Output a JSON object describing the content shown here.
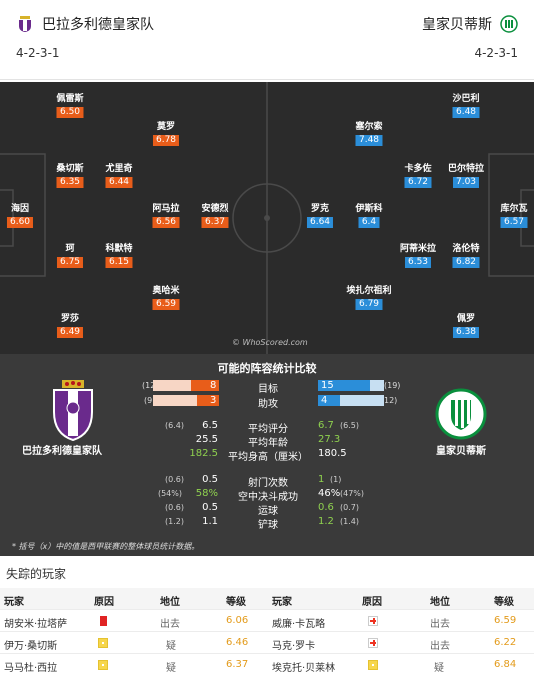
{
  "header": {
    "home_team": "巴拉多利德皇家队",
    "away_team": "皇家贝蒂斯",
    "home_formation": "4-2-3-1",
    "away_formation": "4-2-3-1"
  },
  "pitch": {
    "watermark": "© WhoScored.com",
    "home_players": [
      {
        "name": "佩雷斯",
        "rating": "6.50"
      },
      {
        "name": "莫罗",
        "rating": "6.78"
      },
      {
        "name": "桑切斯",
        "rating": "6.35"
      },
      {
        "name": "尤里奇",
        "rating": "6.44"
      },
      {
        "name": "海因",
        "rating": "6.60"
      },
      {
        "name": "阿马拉",
        "rating": "6.56"
      },
      {
        "name": "安德烈",
        "rating": "6.37"
      },
      {
        "name": "珂",
        "rating": "6.75"
      },
      {
        "name": "科默特",
        "rating": "6.15"
      },
      {
        "name": "奥哈米",
        "rating": "6.59"
      },
      {
        "name": "罗莎",
        "rating": "6.49"
      }
    ],
    "away_players": [
      {
        "name": "沙巴利",
        "rating": "6.48"
      },
      {
        "name": "塞尔索",
        "rating": "7.48"
      },
      {
        "name": "卡多佐",
        "rating": "6.72"
      },
      {
        "name": "巴尔特拉",
        "rating": "7.03"
      },
      {
        "name": "罗克",
        "rating": "6.64"
      },
      {
        "name": "伊斯科",
        "rating": "6.4"
      },
      {
        "name": "库尔瓦",
        "rating": "6.57"
      },
      {
        "name": "阿蒂米拉",
        "rating": "6.53"
      },
      {
        "name": "洛伦特",
        "rating": "6.82"
      },
      {
        "name": "埃扎尔祖利",
        "rating": "6.79"
      },
      {
        "name": "佩罗",
        "rating": "6.38"
      }
    ]
  },
  "stats": {
    "title": "可能的阵容统计比较",
    "home_name": "巴拉多利德皇家队",
    "away_name": "皇家贝蒂斯",
    "bars": [
      {
        "label": "目标",
        "home": "8",
        "home_sub": "(12",
        "home_frac": 0.42,
        "away": "15",
        "away_sub": "(19)",
        "away_frac": 0.79
      },
      {
        "label": "助攻",
        "home": "3",
        "home_sub": "(9",
        "home_frac": 0.33,
        "away": "4",
        "away_sub": "12)",
        "away_frac": 0.33
      }
    ],
    "rows": [
      {
        "label": "平均评分",
        "home": "6.5",
        "home_sub": "(6.4)",
        "away": "6.7",
        "away_sub": "(6.5)",
        "home_green": false,
        "away_green": true
      },
      {
        "label": "平均年龄",
        "home": "25.5",
        "home_sub": "",
        "away": "27.3",
        "away_sub": "",
        "home_green": false,
        "away_green": true
      },
      {
        "label": "平均身高（厘米）",
        "home": "182.5",
        "home_sub": "",
        "away": "180.5",
        "away_sub": "",
        "home_green": true,
        "away_green": false
      },
      {
        "label": "射门次数",
        "home": "0.5",
        "home_sub": "(0.6)",
        "away": "1",
        "away_sub": "(1)",
        "home_green": false,
        "away_green": true
      },
      {
        "label": "空中决斗成功",
        "home": "58%",
        "home_sub": "(54%)",
        "away": "46%",
        "away_sub": "(47%)",
        "home_green": true,
        "away_green": false
      },
      {
        "label": "运球",
        "home": "0.5",
        "home_sub": "(0.6)",
        "away": "0.6",
        "away_sub": "(0.7)",
        "home_green": false,
        "away_green": true
      },
      {
        "label": "铲球",
        "home": "1.1",
        "home_sub": "(1.2)",
        "away": "1.2",
        "away_sub": "(1.4)",
        "home_green": false,
        "away_green": true
      }
    ],
    "footnote": "* 括号（x）中的值是西甲联赛的整体球员统计数据。"
  },
  "missing": {
    "title": "失踪的玩家",
    "headers": [
      "玩家",
      "原因",
      "地位",
      "等级",
      "玩家",
      "原因",
      "地位",
      "等级"
    ],
    "rows": [
      {
        "home_player": "胡安米·拉塔萨",
        "home_reason": "red-card-icon",
        "home_status": "出去",
        "home_rating": "6.06",
        "away_player": "威廉·卡瓦略",
        "away_reason": "injury-icon",
        "away_status": "出去",
        "away_rating": "6.59"
      },
      {
        "home_player": "伊万·桑切斯",
        "home_reason": "doubt-icon",
        "home_status": "疑",
        "home_rating": "6.46",
        "away_player": "马克·罗卡",
        "away_reason": "injury-icon",
        "away_status": "出去",
        "away_rating": "6.22"
      },
      {
        "home_player": "马马杜·西拉",
        "home_reason": "doubt-icon",
        "home_status": "疑",
        "home_rating": "6.37",
        "away_player": "埃克托·贝莱林",
        "away_reason": "doubt-icon",
        "away_status": "疑",
        "away_rating": "6.84"
      }
    ]
  },
  "colors": {
    "home": "#e85d1a",
    "away": "#2b8ed9",
    "pitch": "#2b2b2b",
    "stats_bg": "#3a3a3a",
    "rating_gold": "#e39b1b"
  }
}
